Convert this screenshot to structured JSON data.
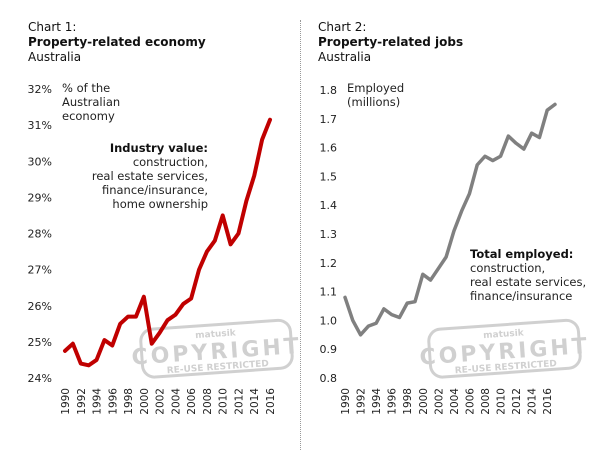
{
  "chart_data": [
    {
      "type": "line",
      "title": "Chart 1:",
      "subtitle": "Property-related economy",
      "region": "Australia",
      "ylabel": "% of the Australian economy",
      "ylim": [
        24,
        32
      ],
      "yticks": [
        "24%",
        "25%",
        "26%",
        "27%",
        "28%",
        "29%",
        "30%",
        "31%",
        "32%"
      ],
      "xticks": [
        "1990",
        "1992",
        "1994",
        "1996",
        "1998",
        "2000",
        "2002",
        "2004",
        "2006",
        "2008",
        "2010",
        "2012",
        "2014",
        "2016"
      ],
      "annotation": {
        "heading": "Industry value:",
        "lines": [
          "construction,",
          "real estate services,",
          "finance/insurance,",
          "home ownership"
        ]
      },
      "color": "#c00000",
      "grid": false,
      "x": [
        1990,
        1991,
        1992,
        1993,
        1994,
        1995,
        1996,
        1997,
        1998,
        1999,
        2000,
        2001,
        2002,
        2003,
        2004,
        2005,
        2006,
        2007,
        2008,
        2009,
        2010,
        2011,
        2012,
        2013,
        2014,
        2015,
        2016
      ],
      "y": [
        24.75,
        24.95,
        24.4,
        24.35,
        24.5,
        25.05,
        24.9,
        25.5,
        25.7,
        25.7,
        26.25,
        24.95,
        25.25,
        25.6,
        25.75,
        26.05,
        26.2,
        27.0,
        27.5,
        27.8,
        28.5,
        27.7,
        28.0,
        28.9,
        29.6,
        30.6,
        31.15
      ]
    },
    {
      "type": "line",
      "title": "Chart 2:",
      "subtitle": "Property-related jobs",
      "region": "Australia",
      "ylabel": "Employed (millions)",
      "ylim": [
        0.8,
        1.8
      ],
      "yticks": [
        "0.8",
        "0.9",
        "1.0",
        "1.1",
        "1.2",
        "1.3",
        "1.4",
        "1.5",
        "1.6",
        "1.7",
        "1.8"
      ],
      "xticks": [
        "1990",
        "1992",
        "1994",
        "1996",
        "1998",
        "2000",
        "2002",
        "2004",
        "2006",
        "2008",
        "2010",
        "2012",
        "2014",
        "2016"
      ],
      "annotation": {
        "heading": "Total employed:",
        "lines": [
          "construction,",
          "real estate services,",
          "finance/insurance"
        ]
      },
      "color": "#808080",
      "grid": false,
      "x": [
        1990,
        1991,
        1992,
        1993,
        1994,
        1995,
        1996,
        1997,
        1998,
        1999,
        2000,
        2001,
        2002,
        2003,
        2004,
        2005,
        2006,
        2007,
        2008,
        2009,
        2010,
        2011,
        2012,
        2013,
        2014,
        2015,
        2016,
        2017
      ],
      "y": [
        1.08,
        1.0,
        0.95,
        0.98,
        0.99,
        1.04,
        1.02,
        1.01,
        1.06,
        1.065,
        1.16,
        1.14,
        1.18,
        1.22,
        1.31,
        1.38,
        1.44,
        1.54,
        1.57,
        1.555,
        1.57,
        1.64,
        1.615,
        1.595,
        1.65,
        1.635,
        1.73,
        1.75
      ]
    }
  ],
  "watermark": {
    "top": "matusik",
    "main": "COPYRIGHT",
    "bottom": "RE-USE RESTRICTED"
  }
}
